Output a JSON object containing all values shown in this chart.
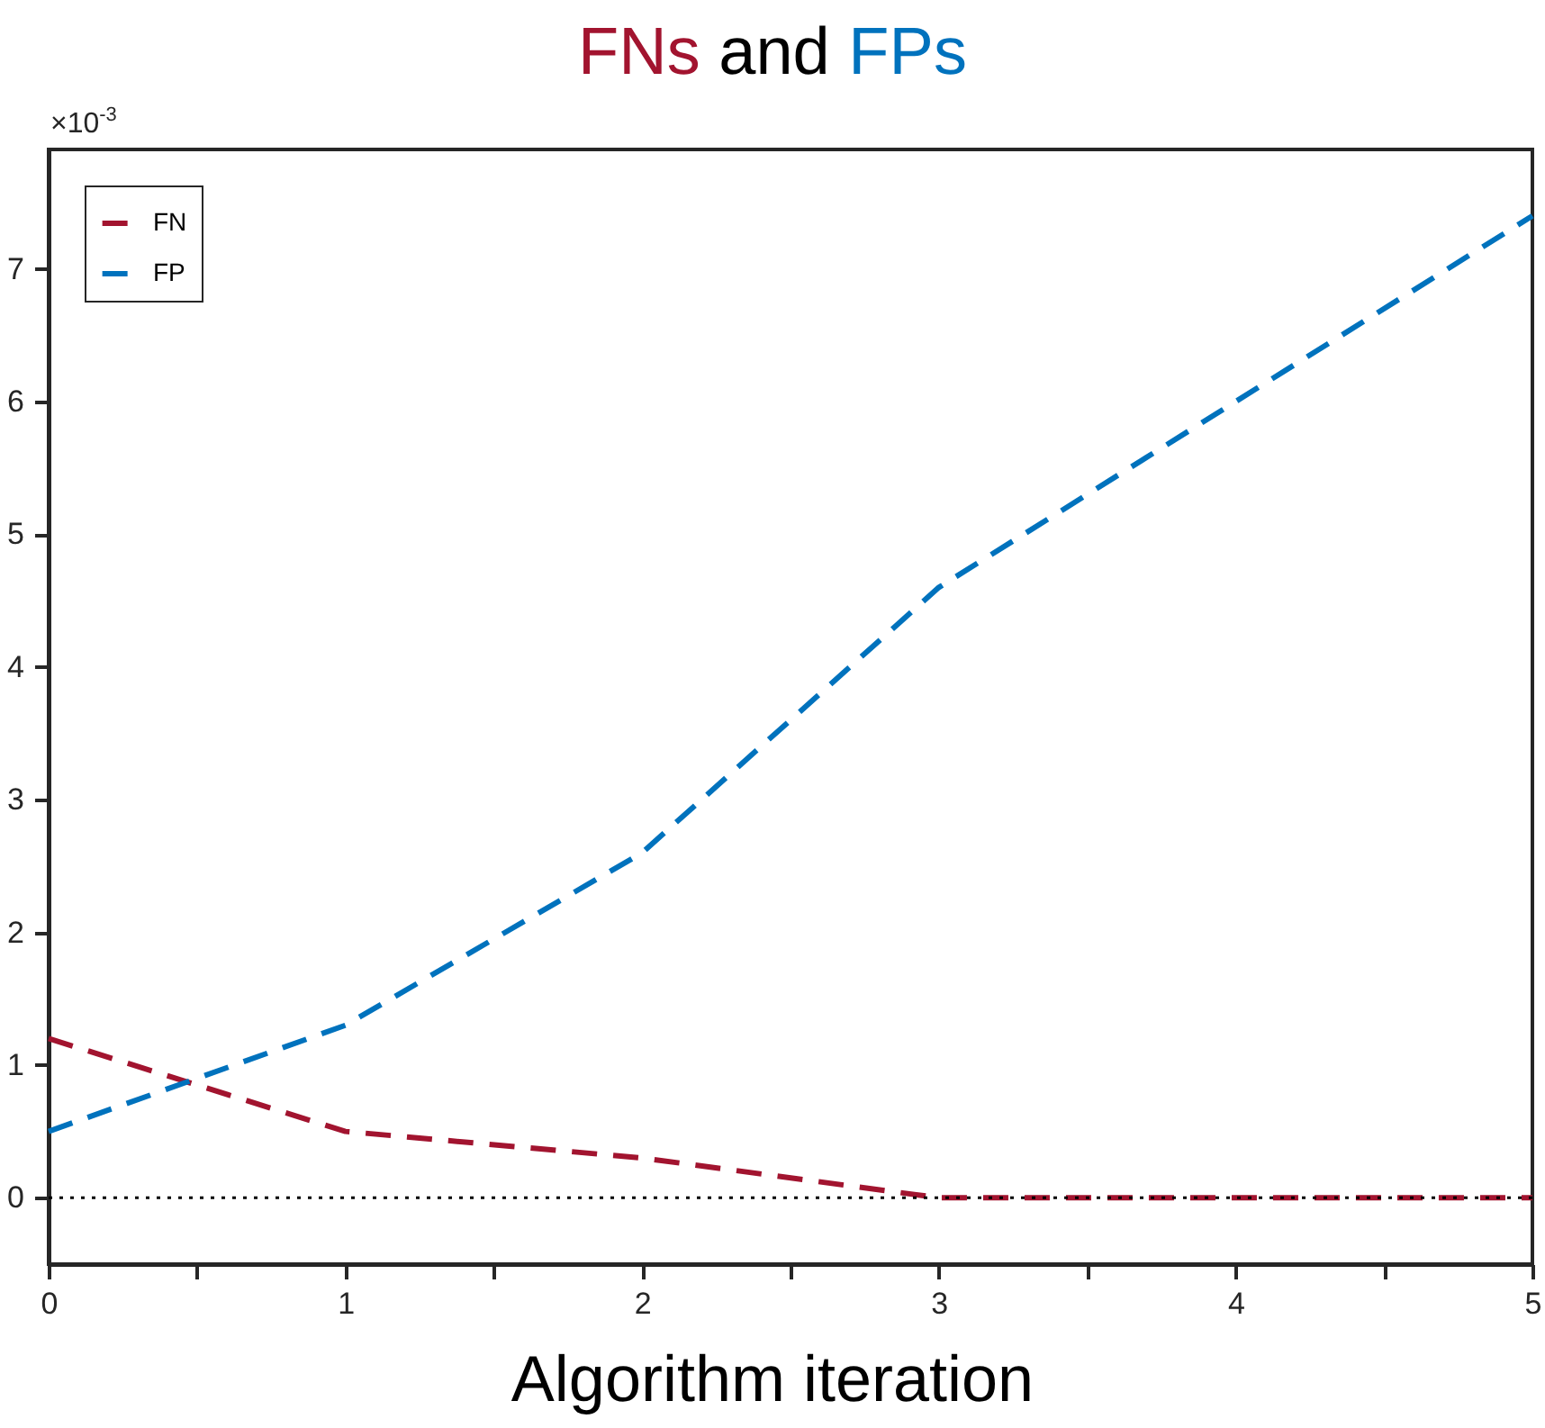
{
  "chart_data": {
    "type": "line",
    "title": "FNs and FPs",
    "xlabel": "Algorithm iteration",
    "x": [
      0,
      1,
      2,
      3,
      4,
      5
    ],
    "series": [
      {
        "name": "FN",
        "color": "#a2142f",
        "line_style": "dashed",
        "values": [
          1.2,
          0.5,
          0.3,
          0,
          0,
          0
        ]
      },
      {
        "name": "FP",
        "color": "#0072bd",
        "line_style": "dashed",
        "values": [
          0.5,
          1.3,
          2.6,
          4.6,
          6.0,
          7.4
        ]
      }
    ],
    "xlim": [
      0,
      5
    ],
    "xticks": [
      0,
      {
        "value": 0.5,
        "label": null
      },
      1,
      {
        "value": 1.5,
        "label": null
      },
      2,
      {
        "value": 2.5,
        "label": null
      },
      3,
      {
        "value": 3.5,
        "label": null
      },
      4,
      {
        "value": 4.5,
        "label": null
      },
      5
    ],
    "ylim": [
      -0.5,
      7.9
    ],
    "yticks": [
      0,
      1,
      2,
      3,
      4,
      5,
      6,
      7
    ],
    "ref_lines": [
      {
        "axis": "y",
        "value": 0,
        "color": "#000000",
        "line_style": "dotted"
      }
    ],
    "annotations": [
      "×10$^{-3}$"
    ],
    "legend": "top left",
    "grid": false,
    "marker": "none"
  }
}
